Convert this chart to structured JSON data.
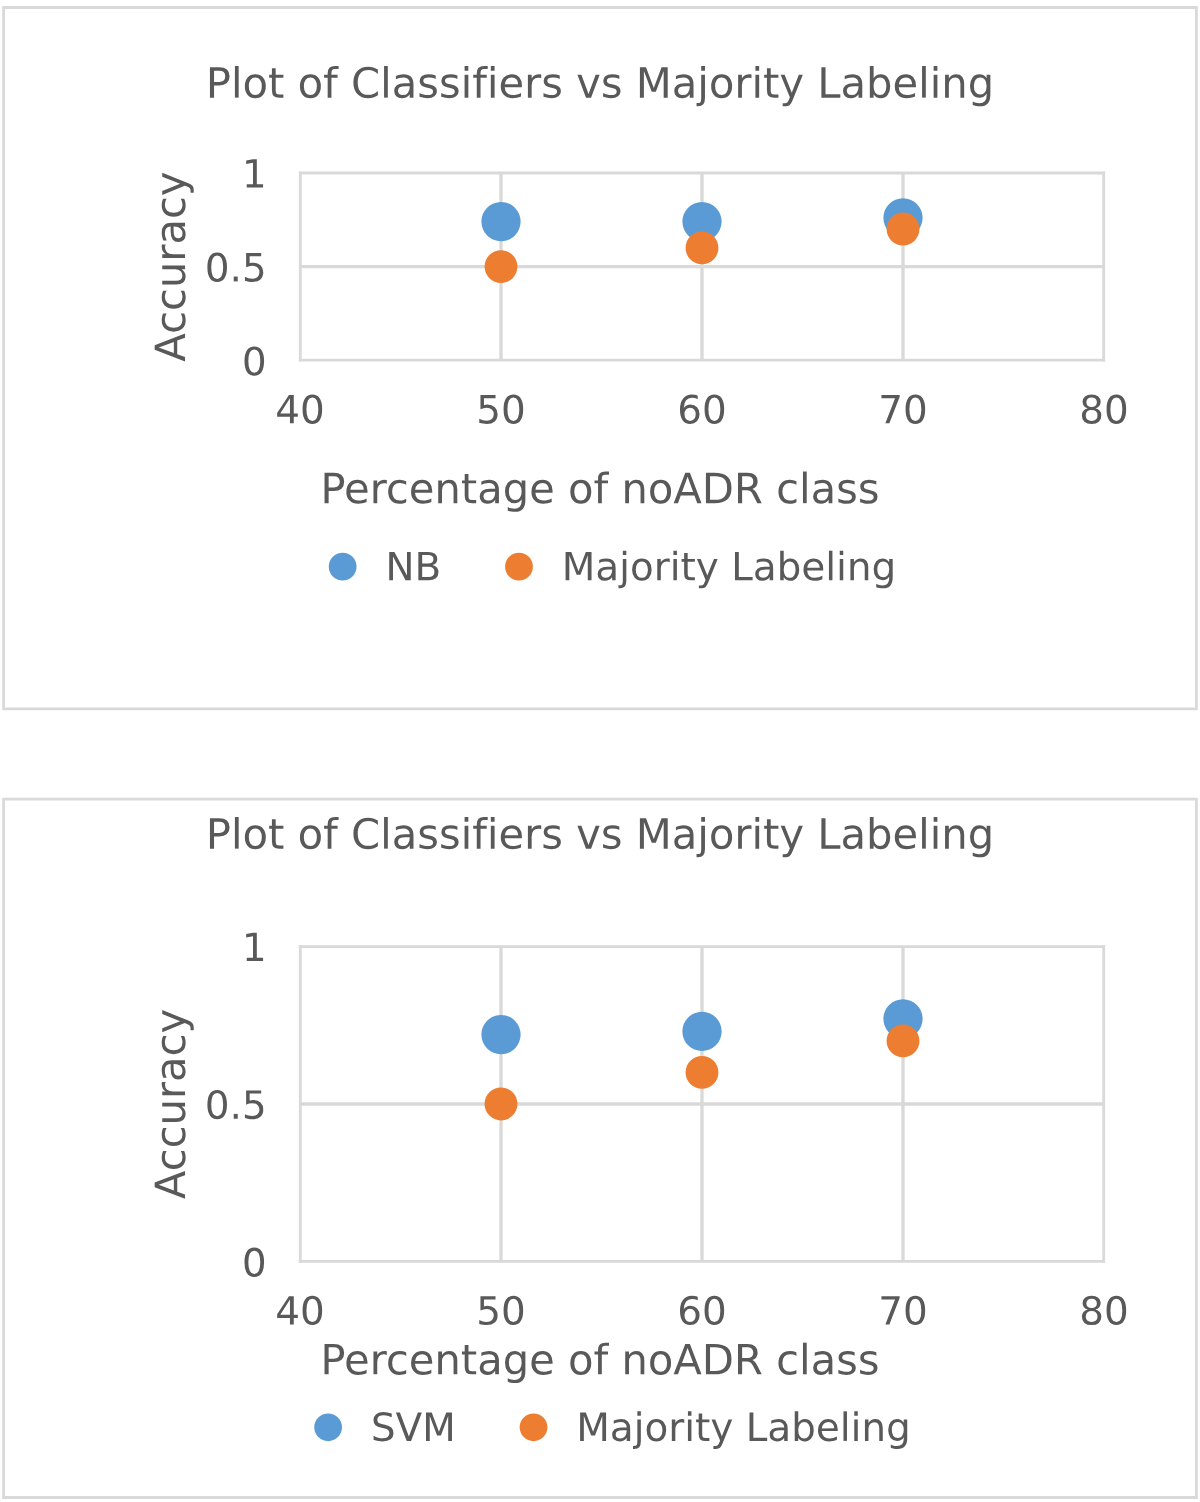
{
  "chart_data": [
    {
      "type": "scatter",
      "title": "Plot of Classifiers vs Majority Labeling",
      "xlabel": "Percentage of noADR class",
      "ylabel": "Accuracy",
      "xlim": [
        40,
        80
      ],
      "xticks": [
        40,
        50,
        60,
        70,
        80
      ],
      "ylim": [
        0,
        1
      ],
      "yticks": [
        0,
        0.5,
        1
      ],
      "grid": true,
      "legend": "bottom",
      "marker": "circle",
      "series": [
        {
          "name": "NB",
          "color": "#5b9bd5",
          "x": [
            50,
            60,
            70
          ],
          "values": [
            0.74,
            0.74,
            0.76
          ]
        },
        {
          "name": "Majority Labeling",
          "color": "#ed7d31",
          "x": [
            50,
            60,
            70
          ],
          "values": [
            0.5,
            0.6,
            0.7
          ]
        }
      ]
    },
    {
      "type": "scatter",
      "title": "Plot of Classifiers vs Majority Labeling",
      "xlabel": "Percentage of noADR class",
      "ylabel": "Accuracy",
      "xlim": [
        40,
        80
      ],
      "xticks": [
        40,
        50,
        60,
        70,
        80
      ],
      "ylim": [
        0,
        1
      ],
      "yticks": [
        0,
        0.5,
        1
      ],
      "grid": true,
      "legend": "bottom",
      "marker": "circle",
      "series": [
        {
          "name": "SVM",
          "color": "#5b9bd5",
          "x": [
            50,
            60,
            70
          ],
          "values": [
            0.72,
            0.73,
            0.77
          ]
        },
        {
          "name": "Majority Labeling",
          "color": "#ed7d31",
          "x": [
            50,
            60,
            70
          ],
          "values": [
            0.5,
            0.6,
            0.7
          ]
        }
      ]
    }
  ]
}
